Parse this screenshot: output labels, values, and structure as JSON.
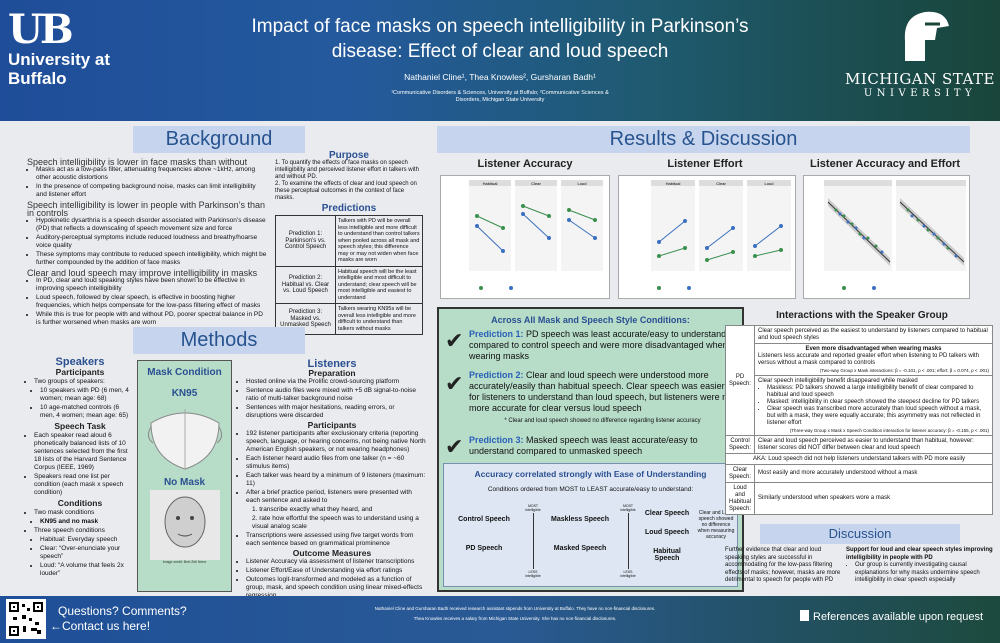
{
  "header": {
    "ub_logo": "UB",
    "ub_name": "University at Buffalo",
    "title": "Impact of face masks on speech intelligibility in Parkinson’s disease: Effect of clear and loud speech",
    "authors": "Nathaniel Cline¹, Thea Knowles², Gursharan Badh¹",
    "affiliations": "¹Communicative Disorders & Sciences, University at Buffalo; ²Communicative Sciences & Disorders, Michigan State University",
    "msu_name": "MICHIGAN STATE",
    "msu_uni": "UNIVERSITY"
  },
  "background": {
    "heading": "Background",
    "sub1": "Speech intelligibility is lower in face masks than without",
    "b1": [
      "Masks act as a low-pass filter, attenuating frequencies above ~1kHz, among other acoustic distortions",
      "In the presence of competing background noise, masks can limit intelligibility and listener effort"
    ],
    "sub2": "Speech intelligibility is lower in people with Parkinson’s than in controls",
    "b2": [
      "Hypokinetic dysarthria is a speech disorder associated with Parkinson’s disease (PD) that reflects a downscaling of speech movement size and force",
      "Auditory-perceptual symptoms include reduced loudness and breathy/hoarse voice quality",
      "These symptoms may contribute to reduced speech intelligibility, which might be further compounded by the addition of face masks"
    ],
    "sub3": "Clear and loud speech may improve intelligibility in masks",
    "b3": [
      "In PD, clear and loud speaking styles have been shown to be effective in improving speech intelligibility",
      "Loud speech, followed by clear speech, is effective in boosting higher frequencies, which helps compensate for the low-pass filtering effect of masks",
      "While this is true for people with and without PD, poorer spectral balance in PD is further worsened when masks are worn"
    ]
  },
  "purpose": {
    "heading": "Purpose",
    "items": [
      "1. To quantify the effects of face masks on speech intelligibility and perceived listener effort in talkers with and without PD.",
      "2. To examine the effects of clear and loud speech on these perceptual outcomes in the context of face masks."
    ]
  },
  "predictions": {
    "heading": "Predictions",
    "rows": [
      {
        "label": "Prediction 1: Parkinson’s vs. Control Speech",
        "text": "Talkers with PD will be overall less intelligible and more difficult to understand than control talkers when pooled across all mask and speech styles; this difference may or may not widen when face masks are worn"
      },
      {
        "label": "Prediction 2: Habitual vs. Clear vs. Loud Speech",
        "text": "Habitual speech will be the least intelligible and most difficult to understand; clear speech will be most intelligible and easiest to understand"
      },
      {
        "label": "Prediction 3: Masked vs. Unmasked Speech",
        "text": "Talkers wearing KN95s will be overall less intelligible and more difficult to understand than talkers without masks"
      }
    ]
  },
  "methods": {
    "heading": "Methods",
    "speakers": "Speakers",
    "participants": "Participants",
    "sp_items": [
      "Two groups of speakers:",
      "10 speakers with PD (6 men, 4 women; mean age: 68)",
      "10 age-matched controls (6 men, 4 women; mean age: 65)"
    ],
    "speech_task": "Speech Task",
    "st_items": [
      "Each speaker read aloud 6 phonetically balanced lists of 10 sentences selected from the first 18 lists of the Harvard Sentence Corpus (IEEE, 1969)",
      "Speakers read one list per condition (each mask x speech condition)"
    ],
    "conditions": "Conditions",
    "c_items": [
      "Two mask conditions",
      "KN95 and no mask",
      "Three speech conditions",
      "Habitual: Everyday speech",
      "Clear: “Over-enunciate your speech”",
      "Loud: “A volume that feels 2x louder”"
    ],
    "mask_condition": "Mask Condition",
    "kn95": "KN95",
    "nomask": "No Mask",
    "image_credit": "Image credit: Bret Zell Nene",
    "listeners": "Listeners",
    "preparation": "Preparation",
    "prep_items": [
      "Hosted online via the Prolific crowd-sourcing platform",
      "Sentence audio files were mixed with +5 dB signal-to-noise ratio of multi-talker background noise",
      "Sentences with major hesitations, reading errors, or disruptions were discarded"
    ],
    "l_participants": "Participants",
    "lp_items": [
      "192 listener participants after exclusionary criteria (reporting speech, language, or hearing concerns, not being native North American English speakers, or not wearing headphones)",
      "Each listener heard audio files from one talker (n = ~60 stimulus items)",
      "Each talker was heard by a minimum of 9 listeners (maximum: 11)",
      "After a brief practice period, listeners were presented with each sentence and asked to",
      "1. transcribe exactly what they heard, and",
      "2. rate how effortful the speech was to understand using a visual analog scale",
      "Transcriptions were assessed using five target words from each sentence based on grammatical prominence"
    ],
    "outcome": "Outcome Measures",
    "o_items": [
      "Listener Accuracy via assessment of listener transcriptions",
      "Listener Effort/Ease of Understanding via effort ratings",
      "Outcomes logit-transformed and modeled as a function of group, mask, and speech condition using linear mixed-effects regression"
    ]
  },
  "results": {
    "heading": "Results & Discussion",
    "chart_titles": [
      "Listener Accuracy",
      "Listener Effort",
      "Listener Accuracy and Effort"
    ],
    "panel_labels": [
      "Habitual",
      "Clear",
      "Loud"
    ],
    "stat_text": "Within-talker correlation summary",
    "green": {
      "heading": "Across All Mask and Speech Style Conditions:",
      "p1_label": "Prediction 1:",
      "p1": "PD speech was least accurate/easy to understand compared to control speech and were more disadvantaged when wearing masks",
      "p2_label": "Prediction 2:",
      "p2": "Clear and loud speech were understood more accurately/easily than habitual speech. Clear speech was easier for listeners to understand than loud speech, but listeners were no more accurate for clear versus loud speech",
      "p2_note": "* Clear and loud speech showed no difference regarding listener accuracy",
      "p3_label": "Prediction 3:",
      "p3": "Masked speech was least accurate/easy to understand compared to unmasked speech"
    },
    "corr_heading": "Accuracy correlated strongly with Ease of Understanding",
    "order_text": "Conditions ordered from MOST to LEAST accurate/easy to understand:",
    "most": "MOST intelligible",
    "least": "LESS intelligible",
    "col1": [
      "Control Speech",
      "PD Speech"
    ],
    "col2": [
      "Maskless Speech",
      "Masked Speech"
    ],
    "col3": [
      "Clear Speech",
      "Loud Speech",
      "Habitual Speech"
    ],
    "col3_note": "Clear and Loud speech showed no difference when measuring accuracy"
  },
  "interactions": {
    "heading": "Interactions with the Speaker Group",
    "pd_label": "PD Speech:",
    "r1": "Clear speech perceived as the easiest to understand by listeners compared to habitual and loud speech styles",
    "r2_head": "Even more disadvantaged when wearing masks",
    "r2": "Listeners less accurate and reported greater effort when listening to PD talkers with versus without a mask compared to controls",
    "r2_stat": "(Two-way Group x Mask interactions: β = -0.101, p < .001; effort: β = 0.074, p < .001)",
    "r3": "Clear speech intelligibility benefit disappeared while masked",
    "r3_items": [
      "Maskless: PD talkers showed a large intelligibility benefit of clear compared to habitual and loud speech",
      "Masked: intelligibility in clear speech showed the steepest decline for PD talkers",
      "Clear speech was transcribed more accurately than loud speech without a mask, but with a mask, they were equally accurate; this asymmetry was not reflected in listener effort"
    ],
    "r3_stat": "(Three-way Group x Mask x Speech Condition interaction for listener accuracy: β = -0.155, p < .001)",
    "ctrl_label": "Control Speech:",
    "ctrl": "Clear and loud speech perceived as easier to understand than habitual, however: listener scores did NOT differ between clear and loud speech",
    "aka": "AKA: Loud speech did not help listeners understand talkers with PD more easily",
    "clear_label": "Clear Speech:",
    "clear": "Most easily and more accurately understood without a mask",
    "lh_label": "Loud and Habitual Speech:",
    "lh": "Similarly understood when speakers wore a mask"
  },
  "discussion": {
    "heading": "Discussion",
    "left": "Further evidence that clear and loud speaking styles are successful in accommodating for the low-pass filtering effects of masks; however, masks are more detrimental to speech for people with PD",
    "right_head": "Support for loud and clear speech styles improving intelligibility in people with PD",
    "right_item": "Our group is currently investigating causal explanations for why masks undermine speech intelligibility in clear speech especially"
  },
  "footer": {
    "questions": "Questions? Comments?",
    "contact": "←Contact us here!",
    "disclosure1": "Nathaniel Cline and Gursharan Badh received research assistant stipends from University at Buffalo. They have no non-financial disclosures.",
    "disclosure2": "Thea Knowles receives a salary from Michigan State University. She has no non-financial disclosures.",
    "references": "References available upon request"
  },
  "colors": {
    "accent": "#27538f",
    "green": "#b7dcc8",
    "control": "#3a8f4e",
    "pd": "#3b6fbf"
  }
}
